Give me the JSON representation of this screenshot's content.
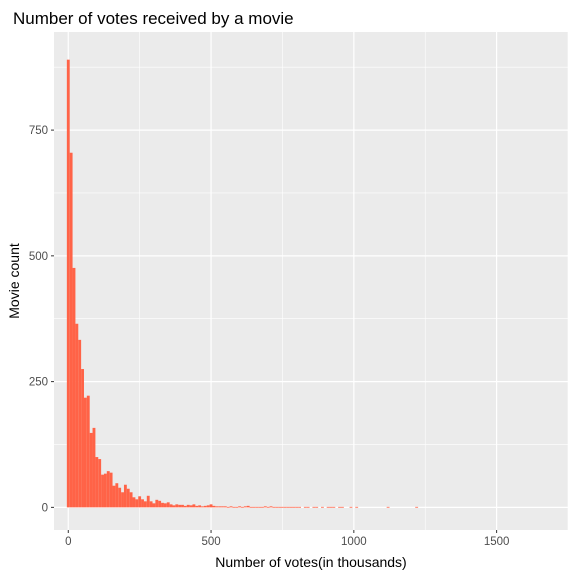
{
  "chart_data": {
    "type": "bar",
    "subtype": "histogram",
    "title": "Number of votes received by a movie",
    "xlabel": "Number of votes(in thousands)",
    "ylabel": "Movie count",
    "xlim": [
      -50,
      1750
    ],
    "ylim": [
      -45,
      945
    ],
    "x_ticks": [
      0,
      500,
      1000,
      1500
    ],
    "x_tick_labels": [
      "0",
      "500",
      "1000",
      "1500"
    ],
    "y_ticks": [
      0,
      250,
      500,
      750
    ],
    "y_tick_labels": [
      "0",
      "250",
      "500",
      "750"
    ],
    "grid": true,
    "bar_color": "#ff6347",
    "panel_background": "#ebebeb",
    "grid_color": "#ffffff",
    "bin_width": 10,
    "bin_start": -5,
    "values": [
      890,
      705,
      476,
      365,
      333,
      275,
      218,
      222,
      148,
      158,
      100,
      96,
      65,
      67,
      72,
      69,
      43,
      48,
      39,
      30,
      45,
      37,
      30,
      20,
      16,
      22,
      16,
      12,
      23,
      12,
      8,
      15,
      13,
      9,
      8,
      10,
      6,
      4,
      6,
      5,
      5,
      3,
      5,
      4,
      6,
      3,
      4,
      2,
      3,
      4,
      6,
      3,
      2,
      2,
      2,
      2,
      1,
      2,
      1,
      1,
      2,
      1,
      2,
      3,
      1,
      1,
      1,
      1,
      1,
      2,
      1,
      2,
      1,
      1,
      1,
      1,
      1,
      1,
      1,
      1,
      1,
      1,
      0,
      1,
      1,
      0,
      1,
      1,
      0,
      1,
      0,
      1,
      1,
      1,
      0,
      1,
      1,
      0,
      0,
      1,
      0,
      1,
      0,
      0,
      0,
      0,
      0,
      0,
      0,
      0,
      0,
      0,
      1,
      0,
      0,
      0,
      0,
      0,
      0,
      0,
      0,
      0,
      1
    ]
  }
}
